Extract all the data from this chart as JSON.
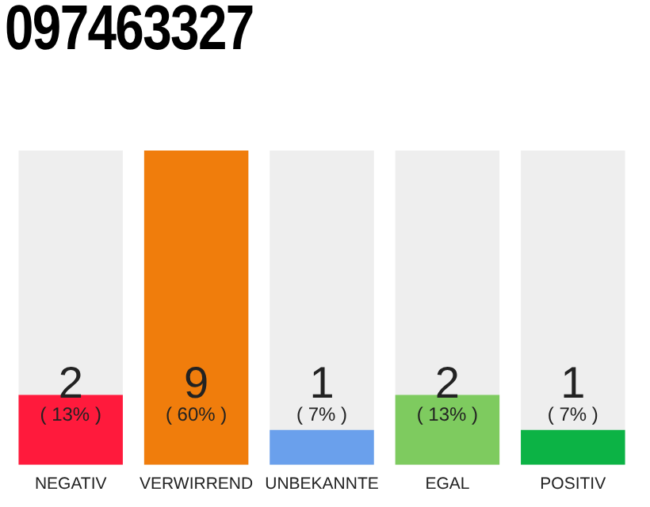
{
  "chart_data": {
    "type": "bar",
    "title": "097463327",
    "categories": [
      "NEGATIV",
      "VERWIRREND",
      "UNBEKANNTE",
      "EGAL",
      "POSITIV"
    ],
    "values": [
      2,
      9,
      1,
      2,
      1
    ],
    "colors": [
      "#ff1a3c",
      "#f07d0c",
      "#6aa0ec",
      "#7ecb5f",
      "#0cb345"
    ],
    "ylim": [
      0,
      9
    ],
    "tick_labels": "x",
    "grid": false,
    "legend": false,
    "data_labels": true,
    "annotations": [
      "( 13% )",
      "( 60% )",
      "( 7% )",
      "( 13% )",
      "( 7% )"
    ]
  }
}
